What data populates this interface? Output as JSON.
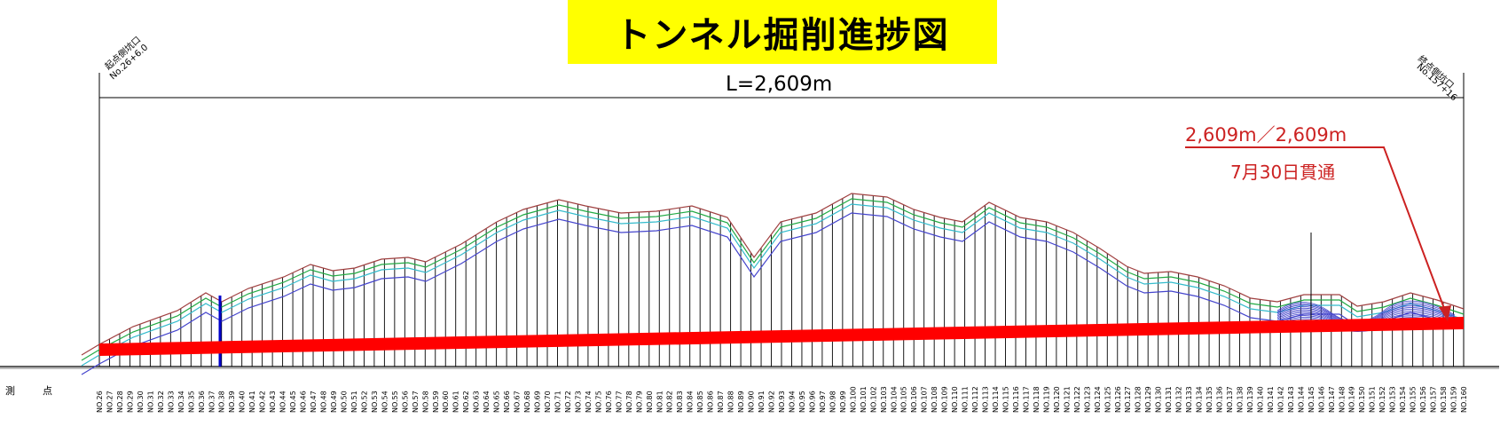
{
  "title": "トンネル掘削進捗図",
  "length_label": "L=2,609m",
  "progress": {
    "text": "2,609m／2,609m",
    "breakthrough": "7月30日貫通",
    "excavated_m": 2609,
    "total_m": 2609,
    "fraction": 1.0
  },
  "portals": {
    "start": {
      "name": "起点側坑口",
      "station": "No.26+6.0"
    },
    "end": {
      "name": "終点側坑口",
      "station": "No.157+16"
    }
  },
  "row_label": {
    "a": "測",
    "b": "点"
  },
  "stations": {
    "first": 26,
    "last": 160
  },
  "colors": {
    "title_bg": "#ffff00",
    "tunnel": "#ff0000",
    "annotation": "#cc2222",
    "ground": "#a04040",
    "layer1": "#22aa44",
    "layer2": "#33bbcc",
    "layer3": "#4444cc",
    "grid": "#000000"
  }
}
